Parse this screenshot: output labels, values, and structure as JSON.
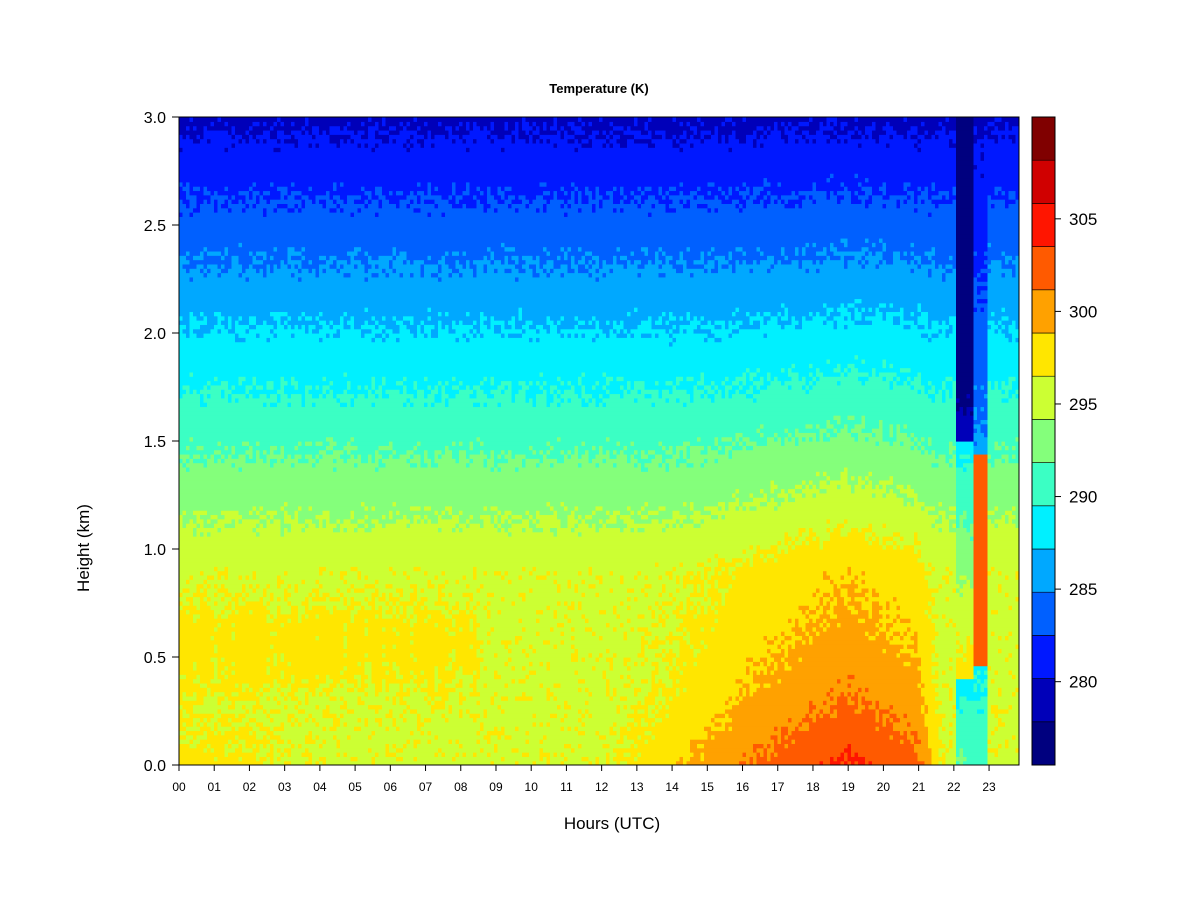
{
  "chart_data": {
    "type": "heatmap",
    "title": "Temperature (K)",
    "xlabel": "Hours (UTC)",
    "ylabel": "Height (km)",
    "x_ticks": [
      "00",
      "01",
      "02",
      "03",
      "04",
      "05",
      "06",
      "07",
      "08",
      "09",
      "10",
      "11",
      "12",
      "13",
      "14",
      "15",
      "16",
      "17",
      "18",
      "19",
      "20",
      "21",
      "22",
      "23"
    ],
    "y_ticks": [
      "0.0",
      "0.5",
      "1.0",
      "1.5",
      "2.0",
      "2.5",
      "3.0"
    ],
    "xlim": [
      0,
      23.85
    ],
    "ylim": [
      0,
      3.0
    ],
    "colorbar": {
      "levels": [
        278,
        280.5,
        283,
        285.5,
        288,
        290.5,
        293,
        295.5,
        298,
        300.5,
        303,
        305.5,
        308
      ],
      "colors": [
        "#00007f",
        "#0000b9",
        "#0018ff",
        "#0060ff",
        "#00a8ff",
        "#00f0ff",
        "#3bffc4",
        "#84ff7b",
        "#ccff33",
        "#ffe600",
        "#ffa100",
        "#ff5a00",
        "#ff1500",
        "#d00000",
        "#800000"
      ],
      "tick_labels": [
        "280",
        "285",
        "290",
        "295",
        "300",
        "305"
      ],
      "tick_values": [
        280,
        285,
        290,
        295,
        300,
        305
      ]
    },
    "surface_temperature_by_hour": [
      {
        "hour": 0,
        "temperature": 299
      },
      {
        "hour": 6,
        "temperature": 297
      },
      {
        "hour": 12,
        "temperature": 297.5
      },
      {
        "hour": 14,
        "temperature": 300
      },
      {
        "hour": 16,
        "temperature": 303
      },
      {
        "hour": 19,
        "temperature": 306
      },
      {
        "hour": 21,
        "temperature": 304
      },
      {
        "hour": 22,
        "temperature": 295
      },
      {
        "hour": 23.8,
        "temperature": 295
      }
    ]
  }
}
